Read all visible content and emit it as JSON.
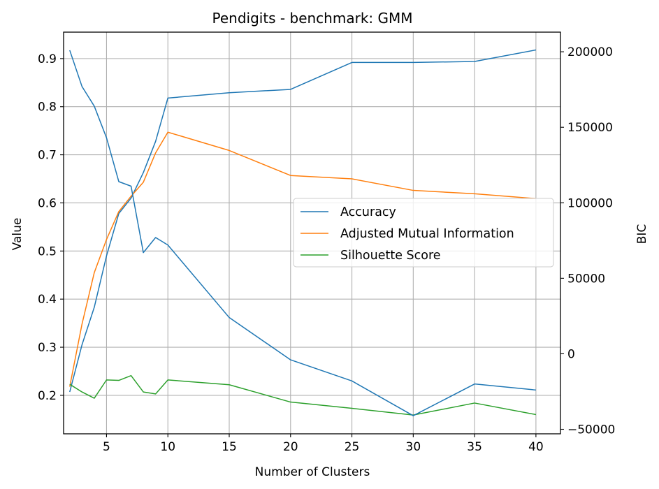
{
  "chart_data": {
    "type": "line",
    "title": "Pendigits - benchmark: GMM",
    "xlabel": "Number of Clusters",
    "ylabel": "Value",
    "y2label": "BIC",
    "x": [
      2,
      3,
      4,
      5,
      6,
      7,
      8,
      9,
      10,
      15,
      20,
      25,
      30,
      35,
      40
    ],
    "xticks": [
      5,
      10,
      15,
      20,
      25,
      30,
      35,
      40
    ],
    "xtick_labels": [
      "5",
      "10",
      "15",
      "20",
      "25",
      "30",
      "35",
      "40"
    ],
    "xlim": [
      1.5,
      42
    ],
    "ylim": [
      0.12,
      0.955
    ],
    "yticks": [
      0.2,
      0.3,
      0.4,
      0.5,
      0.6,
      0.7,
      0.8,
      0.9
    ],
    "ytick_labels": [
      "0.2",
      "0.3",
      "0.4",
      "0.5",
      "0.6",
      "0.7",
      "0.8",
      "0.9"
    ],
    "y2lim": [
      -53000,
      213000
    ],
    "y2ticks": [
      -50000,
      0,
      50000,
      100000,
      150000,
      200000
    ],
    "y2tick_labels": [
      "−50000",
      "0",
      "50000",
      "100000",
      "150000",
      "200000"
    ],
    "grid": true,
    "legend_position": "center-right",
    "series": [
      {
        "name": "Accuracy",
        "axis": "left",
        "color": "#1f77b4",
        "values": [
          0.207,
          0.305,
          0.383,
          0.49,
          0.578,
          0.61,
          0.663,
          0.728,
          0.818,
          0.829,
          0.836,
          0.892,
          0.892,
          0.894,
          0.918
        ]
      },
      {
        "name": "Adjusted Mutual Information",
        "axis": "left",
        "color": "#ff7f0e",
        "values": [
          0.218,
          0.348,
          0.455,
          0.524,
          0.582,
          0.614,
          0.643,
          0.704,
          0.747,
          0.709,
          0.657,
          0.65,
          0.626,
          0.619,
          0.609
        ]
      },
      {
        "name": "Silhouette Score",
        "axis": "left",
        "color": "#2ca02c",
        "values": [
          0.223,
          0.207,
          0.194,
          0.232,
          0.231,
          0.241,
          0.207,
          0.203,
          0.232,
          0.222,
          0.186,
          0.173,
          0.159,
          0.184,
          0.16
        ]
      },
      {
        "name": "",
        "axis": "right",
        "color": "#1f77b4",
        "values": [
          201000,
          177000,
          164000,
          143000,
          114000,
          111000,
          67000,
          77000,
          72000,
          24000,
          -4000,
          -18000,
          -41000,
          -20000,
          -24000
        ]
      }
    ]
  }
}
